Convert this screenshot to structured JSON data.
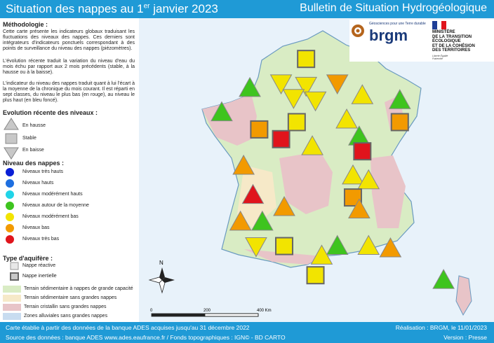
{
  "header": {
    "title_main": "Situation des nappes au 1",
    "title_sup": "er",
    "title_end": " janvier 2023",
    "right_title": "Bulletin de Situation Hydrogéologique"
  },
  "methodology": {
    "heading": "Méthodologie :",
    "p1": "Cette carte présente les indicateurs globaux traduisant les fluctuations des niveaux des nappes. Ces derniers sont intégrateurs d'indicateurs ponctuels correspondant à des points de surveillance du niveau des nappes (piézomètres).",
    "p2": "L'évolution récente traduit la variation du niveau d'eau du mois échu par rapport aux 2 mois précédents (stable, à la hausse ou à la baisse).",
    "p3": "L'indicateur du niveau des nappes traduit quant à lui l'écart à la moyenne de la chronique du mois courant. Il est réparti en sept classes, du niveau le plus bas (en rouge), au niveau le plus haut (en bleu foncé)."
  },
  "evolution": {
    "heading": "Evolution récente des niveaux :",
    "up": "En hausse",
    "stable": "Stable",
    "down": "En baisse"
  },
  "levels": {
    "heading": "Niveau des nappes :",
    "items": [
      {
        "label": "Niveaux très hauts",
        "color": "#0a1fd6"
      },
      {
        "label": "Niveaux hauts",
        "color": "#1e6fe0"
      },
      {
        "label": "Niveaux modérément hauts",
        "color": "#20d4e8"
      },
      {
        "label": "Niveaux autour de la moyenne",
        "color": "#3ec41e"
      },
      {
        "label": "Niveaux modérément bas",
        "color": "#f2e400"
      },
      {
        "label": "Niveaux bas",
        "color": "#f29a00"
      },
      {
        "label": "Niveaux très bas",
        "color": "#e0141c"
      }
    ]
  },
  "aquifer": {
    "heading": "Type d'aquifère :",
    "reactive": "Nappe réactive",
    "inertial": "Nappe inertielle"
  },
  "terrain": [
    {
      "label": "Terrain sédimentaire à nappes de grande capacité",
      "color": "#d9ecc4"
    },
    {
      "label": "Terrain sédimentaire sans grandes nappes",
      "color": "#f6e9c8"
    },
    {
      "label": "Terrain cristallin sans grandes nappes",
      "color": "#e8c4c8"
    },
    {
      "label": "Zones alluviales sans grandes nappes",
      "color": "#c8dcf0"
    }
  ],
  "logos": {
    "brgm_tagline": "Géosciences pour une Terre durable",
    "brgm": "brgm",
    "ministry_l1": "MINISTÈRE",
    "ministry_l2": "DE LA TRANSITION",
    "ministry_l3": "ÉCOLOGIQUE",
    "ministry_l4": "ET DE LA COHÉSION",
    "ministry_l5": "DES TERRITOIRES",
    "motto": "Liberté Égalité Fraternité"
  },
  "map": {
    "north": "N",
    "scale_0": "0",
    "scale_200": "200",
    "scale_400": "400 Km",
    "colors": {
      "red": "#e0141c",
      "orange": "#f29a00",
      "yellow": "#f2e400",
      "green": "#3ec41e"
    },
    "markers": [
      {
        "shape": "square",
        "color": "yellow",
        "lx": 0.49,
        "ly": 0.11
      },
      {
        "shape": "down",
        "color": "yellow",
        "lx": 0.41,
        "ly": 0.21
      },
      {
        "shape": "down",
        "color": "yellow",
        "lx": 0.49,
        "ly": 0.22
      },
      {
        "shape": "down",
        "color": "orange",
        "lx": 0.59,
        "ly": 0.21
      },
      {
        "shape": "down",
        "color": "yellow",
        "lx": 0.45,
        "ly": 0.27
      },
      {
        "shape": "down",
        "color": "yellow",
        "lx": 0.52,
        "ly": 0.28
      },
      {
        "shape": "up",
        "color": "yellow",
        "lx": 0.67,
        "ly": 0.26
      },
      {
        "shape": "up",
        "color": "green",
        "lx": 0.31,
        "ly": 0.23
      },
      {
        "shape": "up",
        "color": "green",
        "lx": 0.22,
        "ly": 0.33
      },
      {
        "shape": "up",
        "color": "green",
        "lx": 0.79,
        "ly": 0.28
      },
      {
        "shape": "square",
        "color": "yellow",
        "lx": 0.46,
        "ly": 0.37
      },
      {
        "shape": "up",
        "color": "yellow",
        "lx": 0.62,
        "ly": 0.36
      },
      {
        "shape": "square",
        "color": "orange",
        "lx": 0.34,
        "ly": 0.4
      },
      {
        "shape": "square",
        "color": "red",
        "lx": 0.41,
        "ly": 0.44
      },
      {
        "shape": "square",
        "color": "orange",
        "lx": 0.79,
        "ly": 0.37
      },
      {
        "shape": "up",
        "color": "green",
        "lx": 0.66,
        "ly": 0.43
      },
      {
        "shape": "square",
        "color": "red",
        "lx": 0.67,
        "ly": 0.49
      },
      {
        "shape": "up",
        "color": "yellow",
        "lx": 0.51,
        "ly": 0.47
      },
      {
        "shape": "up",
        "color": "orange",
        "lx": 0.29,
        "ly": 0.55
      },
      {
        "shape": "up",
        "color": "yellow",
        "lx": 0.64,
        "ly": 0.59
      },
      {
        "shape": "up",
        "color": "yellow",
        "lx": 0.69,
        "ly": 0.61
      },
      {
        "shape": "up",
        "color": "red",
        "lx": 0.32,
        "ly": 0.67
      },
      {
        "shape": "square",
        "color": "orange",
        "lx": 0.64,
        "ly": 0.68
      },
      {
        "shape": "up",
        "color": "orange",
        "lx": 0.42,
        "ly": 0.72
      },
      {
        "shape": "up",
        "color": "orange",
        "lx": 0.28,
        "ly": 0.78
      },
      {
        "shape": "up",
        "color": "green",
        "lx": 0.35,
        "ly": 0.78
      },
      {
        "shape": "up",
        "color": "orange",
        "lx": 0.66,
        "ly": 0.73
      },
      {
        "shape": "down",
        "color": "yellow",
        "lx": 0.33,
        "ly": 0.88
      },
      {
        "shape": "square",
        "color": "yellow",
        "lx": 0.42,
        "ly": 0.88
      },
      {
        "shape": "up",
        "color": "green",
        "lx": 0.59,
        "ly": 0.88
      },
      {
        "shape": "up",
        "color": "yellow",
        "lx": 0.69,
        "ly": 0.88
      },
      {
        "shape": "up",
        "color": "orange",
        "lx": 0.76,
        "ly": 0.89
      },
      {
        "shape": "up",
        "color": "yellow",
        "lx": 0.54,
        "ly": 0.92
      },
      {
        "shape": "square",
        "color": "yellow",
        "lx": 0.52,
        "ly": 1.0
      },
      {
        "shape": "up",
        "color": "green",
        "lx": 0.93,
        "ly": 1.02
      }
    ]
  },
  "footer": {
    "line1": "Carte établie à partir des données de la banque ADES acquises jusqu'au 31 décembre 2022",
    "line2": "Source des données : banque ADES www.ades.eaufrance.fr / Fonds topographiques : IGN© - BD CARTO",
    "realisation": "Réalisation : BRGM, le 11/01/2023",
    "version": "Version : Presse"
  }
}
